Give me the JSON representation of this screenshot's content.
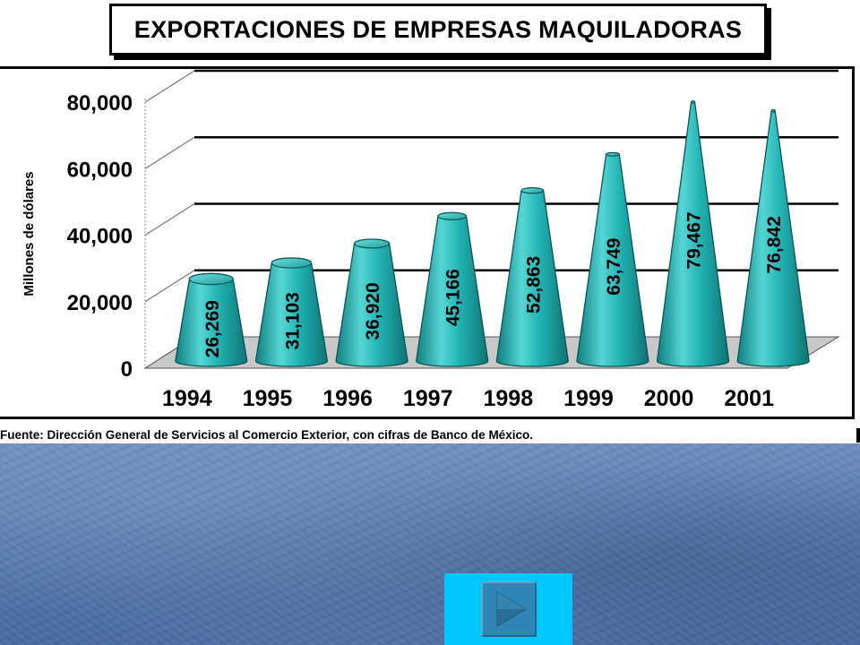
{
  "title": "EXPORTACIONES DE EMPRESAS MAQUILADORAS",
  "source_note": "Fuente: Dirección General de Servicios al Comercio Exterior, con cifras de Banco de México.",
  "colors": {
    "cone_fill": "#22b3b3",
    "cone_dark": "#0f7f80",
    "cone_light": "#55d6d4",
    "floor": "#c8c8c8",
    "background_blue": "#587aae",
    "button_cyan": "#00c8ff",
    "button_icon": "#2f86b5"
  },
  "next_button": {
    "icon": "play-triangle-icon"
  },
  "chart_data": {
    "type": "bar",
    "bar_shape": "3d-cone",
    "title": "",
    "xlabel": "",
    "ylabel": "Millones de dólares",
    "categories": [
      "1994",
      "1995",
      "1996",
      "1997",
      "1998",
      "1999",
      "2000",
      "2001"
    ],
    "values": [
      26269,
      31103,
      36920,
      45166,
      52863,
      63749,
      79467,
      76842
    ],
    "data_labels": [
      "26,269",
      "31,103",
      "36,920",
      "45,166",
      "52,863",
      "63,749",
      "79,467",
      "76,842"
    ],
    "yticks": [
      0,
      20000,
      40000,
      60000,
      80000
    ],
    "ytick_labels": [
      "0",
      "20,000",
      "40,000",
      "60,000",
      "80,000"
    ],
    "ylim": [
      0,
      80000
    ],
    "grid": true,
    "legend": "none"
  }
}
